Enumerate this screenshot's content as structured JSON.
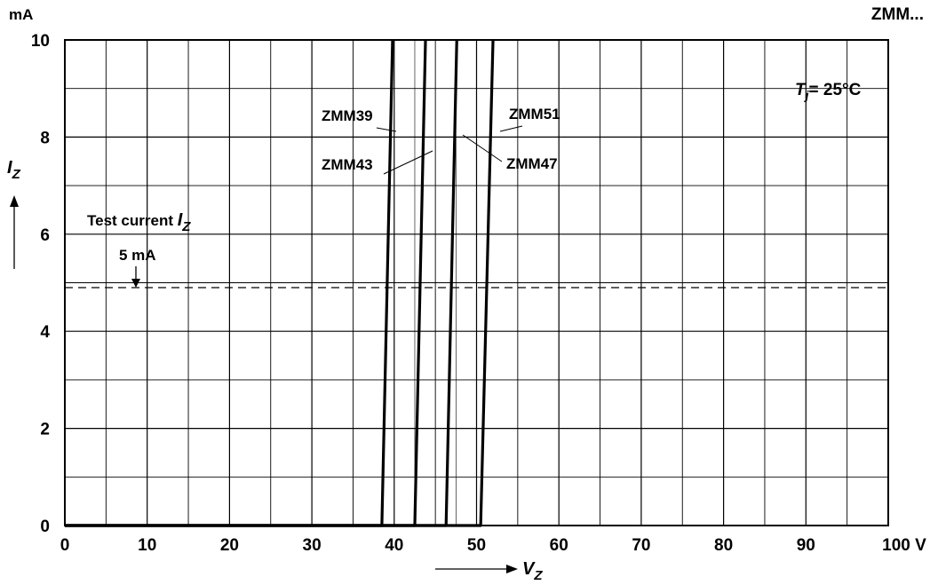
{
  "chart_data": {
    "type": "line",
    "title": "ZMM...",
    "y_unit": "mA",
    "x_unit": "V",
    "xlabel_symbol": "V",
    "xlabel_subscript": "Z",
    "ylabel_symbol": "I",
    "ylabel_subscript": "Z",
    "xlim": [
      0,
      100
    ],
    "ylim": [
      0,
      10
    ],
    "x_ticks": [
      0,
      10,
      20,
      30,
      40,
      50,
      60,
      70,
      80,
      90,
      100
    ],
    "y_ticks": [
      0,
      2,
      4,
      6,
      8,
      10
    ],
    "grid": true,
    "temperature": {
      "symbol": "T",
      "subscript": "j",
      "text": "= 25°C"
    },
    "test_current": {
      "label": "Test current",
      "symbol": "I",
      "subscript": "Z",
      "value_label": "5 mA",
      "value": 4.9
    },
    "series": [
      {
        "name": "ZMM39",
        "points": [
          [
            0,
            0
          ],
          [
            38.5,
            0
          ],
          [
            39.8,
            10
          ]
        ]
      },
      {
        "name": "ZMM43",
        "points": [
          [
            0,
            0
          ],
          [
            42.5,
            0
          ],
          [
            43.8,
            10
          ]
        ]
      },
      {
        "name": "ZMM47",
        "points": [
          [
            0,
            0
          ],
          [
            46.3,
            0
          ],
          [
            47.6,
            10
          ]
        ]
      },
      {
        "name": "ZMM51",
        "points": [
          [
            0,
            0
          ],
          [
            50.5,
            0
          ],
          [
            52,
            10
          ]
        ]
      }
    ]
  }
}
